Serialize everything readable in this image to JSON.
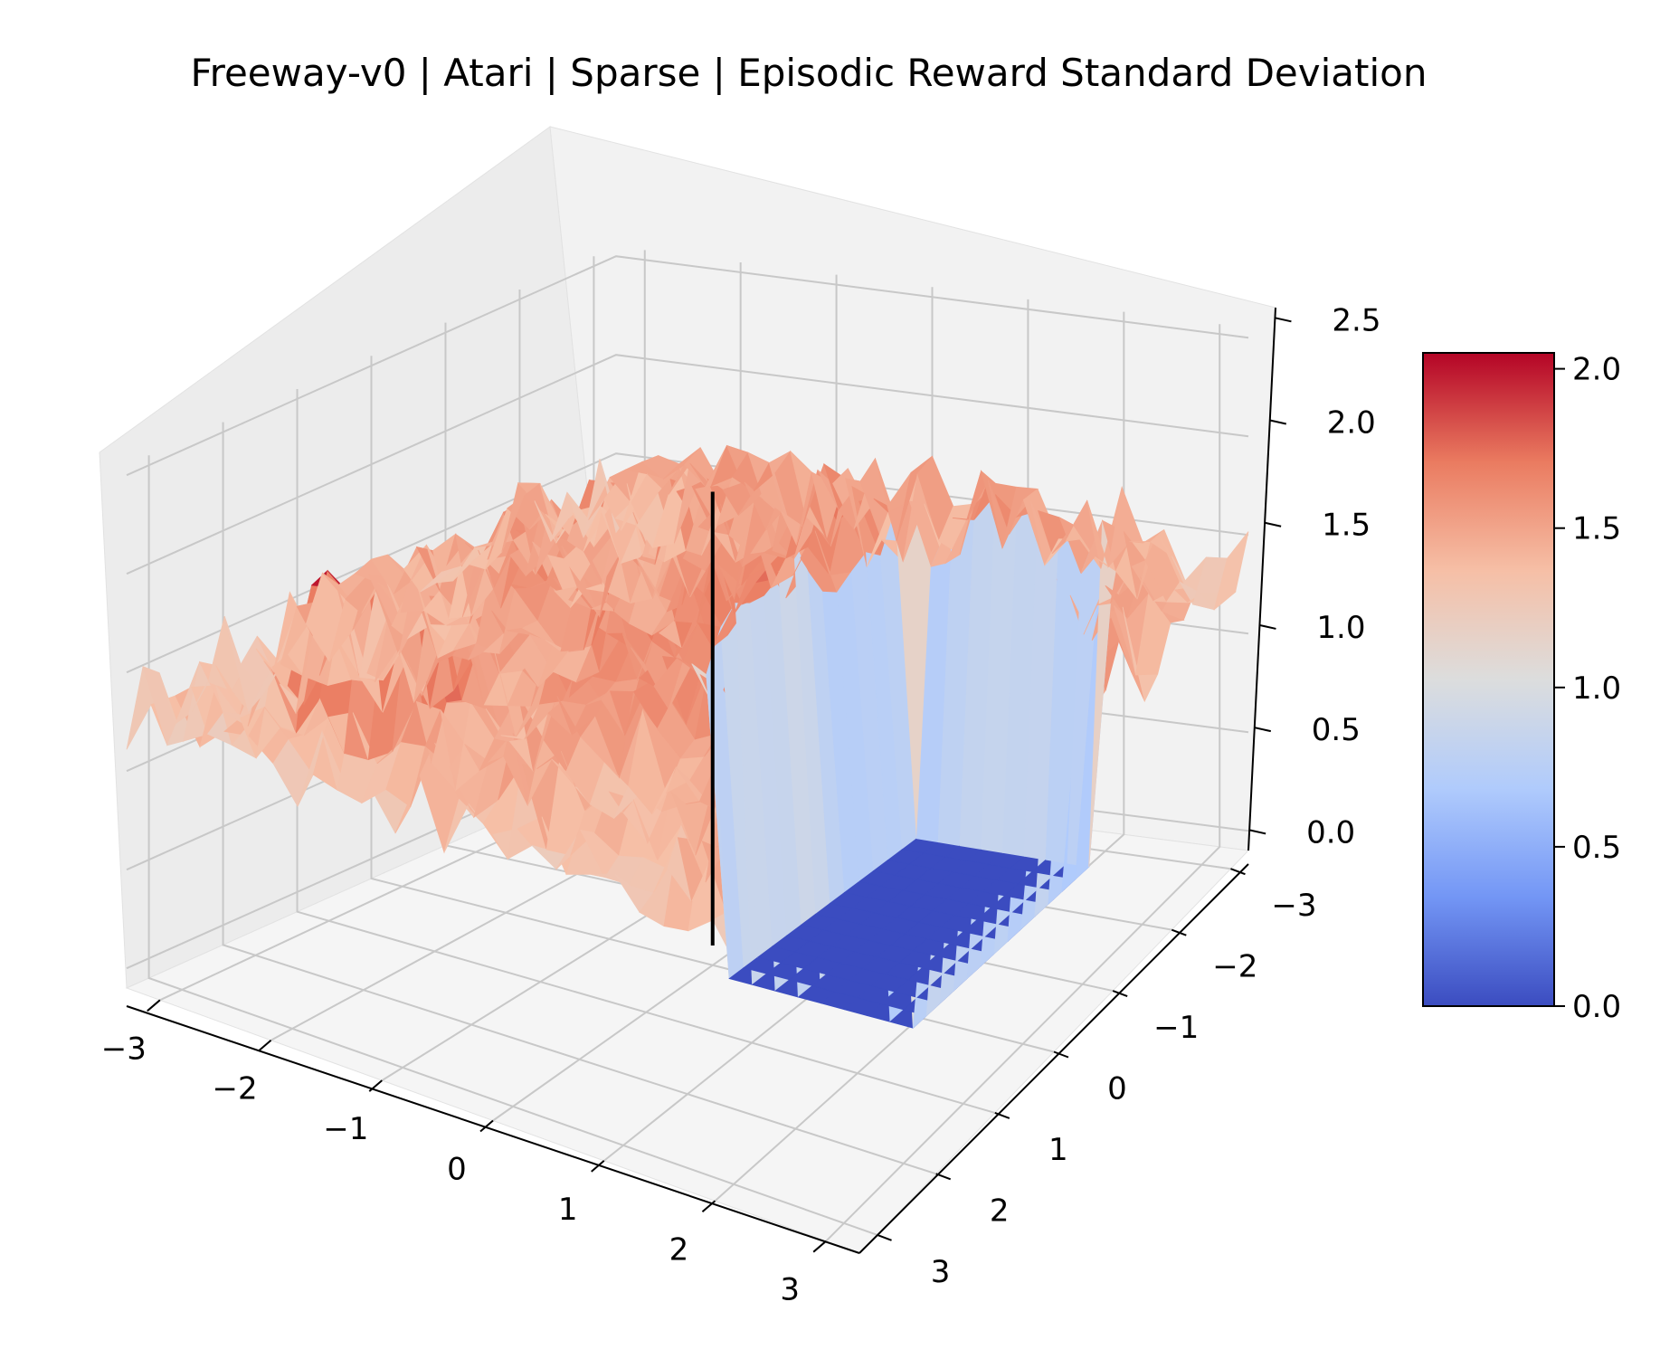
{
  "chart_data": {
    "type": "surface3d",
    "title": "Freeway-v0 | Atari | Sparse | Episodic Reward Standard Deviation",
    "xlabel": "",
    "ylabel": "",
    "zlabel": "",
    "x_ticks": [
      "−3",
      "−2",
      "−1",
      "0",
      "1",
      "2",
      "3"
    ],
    "y_ticks": [
      "−3",
      "−2",
      "−1",
      "0",
      "1",
      "2",
      "3"
    ],
    "z_ticks": [
      "0.0",
      "0.5",
      "1.0",
      "1.5",
      "2.0",
      "2.5"
    ],
    "xlim": [
      -3.3,
      3.3
    ],
    "ylim": [
      -3.3,
      3.3
    ],
    "zlim": [
      -0.1,
      2.55
    ],
    "colormap": "coolwarm",
    "colorbar": {
      "range": [
        0.0,
        2.05
      ],
      "ticks": [
        "0.0",
        "0.5",
        "1.0",
        "1.5",
        "2.0"
      ],
      "colors": [
        "#3b4cc0",
        "#7396f5",
        "#b0cbfc",
        "#dcdddd",
        "#f6bfa6",
        "#ea7b60",
        "#b40426"
      ]
    },
    "plateau_level": 1.35,
    "zero_pit": {
      "x_range": [
        0.3,
        2.2
      ],
      "y_range": [
        -2.5,
        0.5
      ],
      "value": 0.0
    },
    "peak_region": {
      "x_range": [
        -2.3,
        -1.3
      ],
      "y_range": [
        1.8,
        2.6
      ],
      "value": 2.05
    },
    "marker_line": {
      "x": 0.0,
      "y": 0.0,
      "z_from": 0.0,
      "z_to": 2.3,
      "color": "#000000"
    }
  }
}
